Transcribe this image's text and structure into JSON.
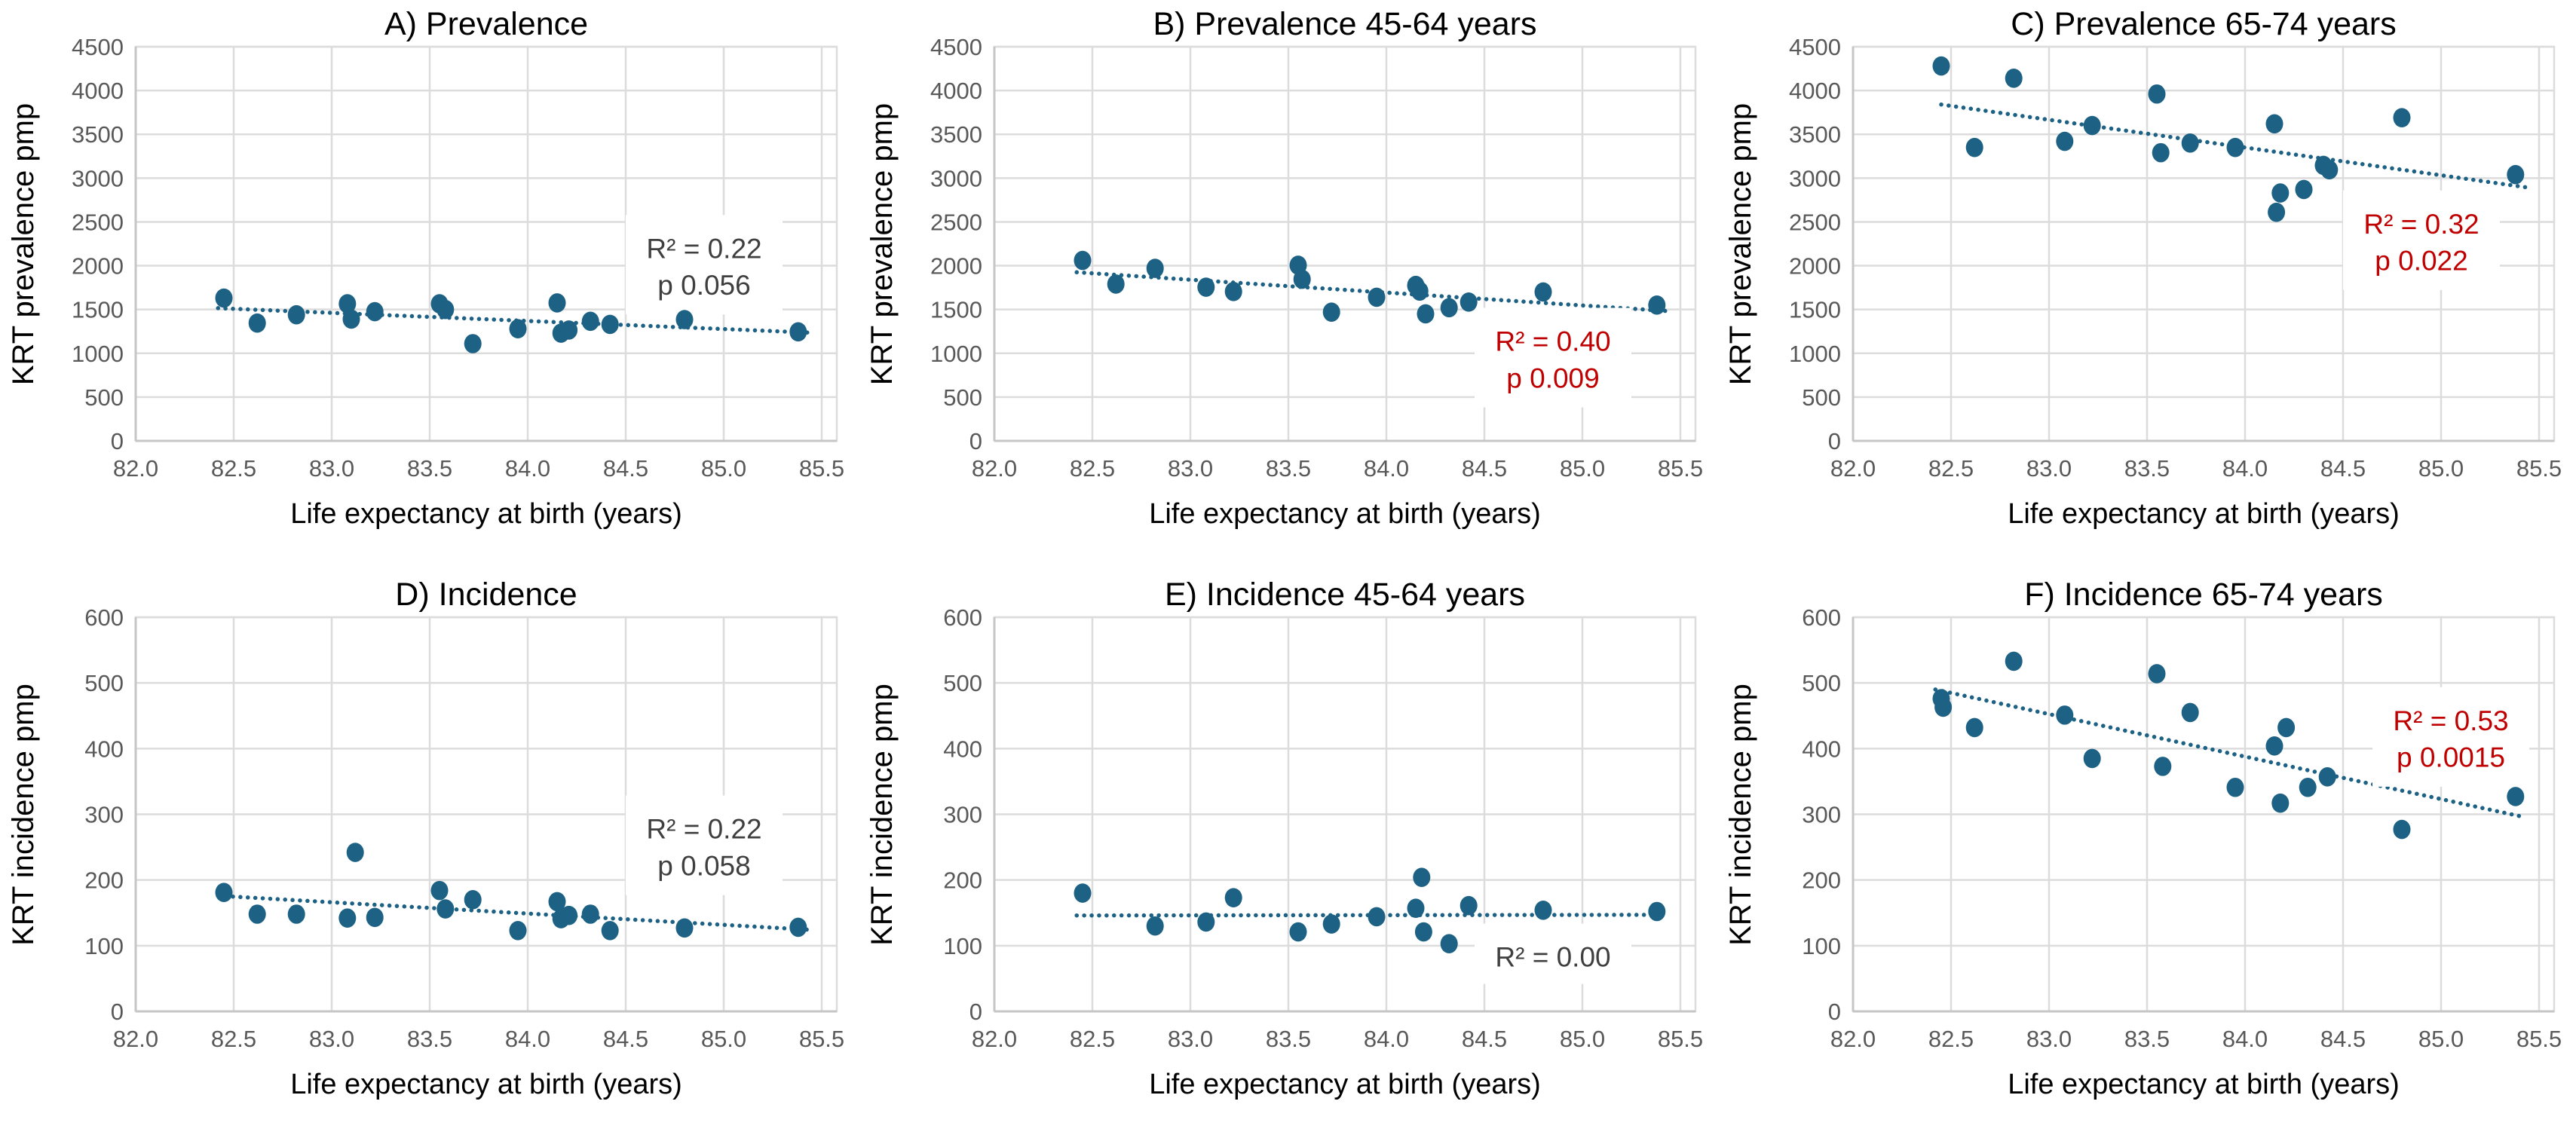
{
  "figure": {
    "background": "#ffffff",
    "description_labels": {
      "x_axis_shared": "Life expectancy at birth (years)",
      "y_axis_top_row": "KRT prevalence pmp",
      "y_axis_bottom_row": "KRT incidence pmp"
    }
  },
  "styles": {
    "point_color": "#1d6284",
    "trend_color": "#1d6284",
    "grid_color": "#dcdcdc",
    "axis_color": "#c6c6c6",
    "tick_label_color": "#595959",
    "title_color": "#000000",
    "annotation_dark": "#3f3f3f",
    "annotation_red": "#c00000"
  },
  "chart_data": [
    {
      "id": "A",
      "type": "scatter",
      "title": "A) Prevalence",
      "xlabel": "Life expectancy at birth (years)",
      "ylabel": "KRT prevalence pmp",
      "xlim": [
        82.0,
        85.5
      ],
      "xtick_step": 0.5,
      "ylim": [
        0,
        4500
      ],
      "ytick_step": 500,
      "grid": true,
      "points": [
        [
          82.45,
          1630
        ],
        [
          82.62,
          1345
        ],
        [
          82.82,
          1440
        ],
        [
          83.08,
          1565
        ],
        [
          83.1,
          1390
        ],
        [
          83.22,
          1475
        ],
        [
          83.55,
          1565
        ],
        [
          83.58,
          1500
        ],
        [
          83.72,
          1110
        ],
        [
          83.95,
          1280
        ],
        [
          84.15,
          1575
        ],
        [
          84.17,
          1230
        ],
        [
          84.21,
          1265
        ],
        [
          84.32,
          1365
        ],
        [
          84.42,
          1330
        ],
        [
          84.8,
          1385
        ],
        [
          85.38,
          1245
        ]
      ],
      "trendline": {
        "style": "dotted",
        "x1": 82.42,
        "y1": 1515,
        "x2": 85.45,
        "y2": 1235
      },
      "annotation": {
        "lines": [
          "R² = 0.22",
          "p 0.056"
        ],
        "color": "dark",
        "x": 84.9,
        "y_lines": [
          2200,
          1780
        ]
      }
    },
    {
      "id": "B",
      "type": "scatter",
      "title": "B) Prevalence 45-64 years",
      "xlabel": "Life expectancy at birth (years)",
      "ylabel": "KRT prevalence pmp",
      "xlim": [
        82.0,
        85.5
      ],
      "xtick_step": 0.5,
      "ylim": [
        0,
        4500
      ],
      "ytick_step": 500,
      "grid": true,
      "points": [
        [
          82.45,
          2060
        ],
        [
          82.62,
          1790
        ],
        [
          82.82,
          1970
        ],
        [
          83.08,
          1755
        ],
        [
          83.22,
          1705
        ],
        [
          83.55,
          2005
        ],
        [
          83.57,
          1845
        ],
        [
          83.72,
          1470
        ],
        [
          83.95,
          1640
        ],
        [
          84.15,
          1775
        ],
        [
          84.17,
          1710
        ],
        [
          84.2,
          1450
        ],
        [
          84.32,
          1520
        ],
        [
          84.42,
          1585
        ],
        [
          84.8,
          1700
        ],
        [
          85.38,
          1550
        ]
      ],
      "trendline": {
        "style": "dotted",
        "x1": 82.42,
        "y1": 1925,
        "x2": 85.45,
        "y2": 1480
      },
      "annotation": {
        "lines": [
          "R² = 0.40",
          "p 0.009"
        ],
        "color": "red",
        "x": 84.85,
        "y_lines": [
          1140,
          720
        ]
      }
    },
    {
      "id": "C",
      "type": "scatter",
      "title": "C) Prevalence 65-74 years",
      "xlabel": "Life expectancy at birth (years)",
      "ylabel": "KRT prevalence pmp",
      "xlim": [
        82.0,
        85.5
      ],
      "xtick_step": 0.5,
      "ylim": [
        0,
        4500
      ],
      "ytick_step": 500,
      "grid": true,
      "points": [
        [
          82.45,
          4280
        ],
        [
          82.62,
          3350
        ],
        [
          82.82,
          4140
        ],
        [
          83.08,
          3420
        ],
        [
          83.22,
          3600
        ],
        [
          83.55,
          3960
        ],
        [
          83.57,
          3290
        ],
        [
          83.72,
          3400
        ],
        [
          83.95,
          3350
        ],
        [
          84.15,
          3620
        ],
        [
          84.16,
          2610
        ],
        [
          84.18,
          2830
        ],
        [
          84.3,
          2870
        ],
        [
          84.4,
          3145
        ],
        [
          84.43,
          3095
        ],
        [
          84.8,
          3690
        ],
        [
          85.38,
          3040
        ]
      ],
      "trendline": {
        "style": "dotted",
        "x1": 82.45,
        "y1": 3840,
        "x2": 85.45,
        "y2": 2890
      },
      "annotation": {
        "lines": [
          "R² = 0.32",
          "p 0.022"
        ],
        "color": "red",
        "x": 84.9,
        "y_lines": [
          2480,
          2060
        ]
      }
    },
    {
      "id": "D",
      "type": "scatter",
      "title": "D) Incidence",
      "xlabel": "Life expectancy at birth (years)",
      "ylabel": "KRT incidence pmp",
      "xlim": [
        82.0,
        85.5
      ],
      "xtick_step": 0.5,
      "ylim": [
        0,
        600
      ],
      "ytick_step": 100,
      "grid": true,
      "points": [
        [
          82.45,
          181
        ],
        [
          82.62,
          148
        ],
        [
          82.82,
          148
        ],
        [
          83.08,
          142
        ],
        [
          83.12,
          242
        ],
        [
          83.22,
          143
        ],
        [
          83.55,
          184
        ],
        [
          83.58,
          156
        ],
        [
          83.72,
          170
        ],
        [
          83.95,
          123
        ],
        [
          84.15,
          167
        ],
        [
          84.17,
          141
        ],
        [
          84.21,
          146
        ],
        [
          84.32,
          148
        ],
        [
          84.42,
          123
        ],
        [
          84.8,
          127
        ],
        [
          85.38,
          128
        ]
      ],
      "trendline": {
        "style": "dotted",
        "x1": 82.42,
        "y1": 176,
        "x2": 85.45,
        "y2": 124
      },
      "annotation": {
        "lines": [
          "R² = 0.22",
          "p 0.058"
        ],
        "color": "dark",
        "x": 84.9,
        "y_lines": [
          278,
          222
        ]
      }
    },
    {
      "id": "E",
      "type": "scatter",
      "title": "E) Incidence 45-64 years",
      "xlabel": "Life expectancy at birth (years)",
      "ylabel": "KRT incidence pmp",
      "xlim": [
        82.0,
        85.5
      ],
      "xtick_step": 0.5,
      "ylim": [
        0,
        600
      ],
      "ytick_step": 100,
      "grid": true,
      "points": [
        [
          82.45,
          180
        ],
        [
          82.82,
          130
        ],
        [
          83.08,
          136
        ],
        [
          83.22,
          173
        ],
        [
          83.55,
          121
        ],
        [
          83.72,
          133
        ],
        [
          83.95,
          144
        ],
        [
          84.15,
          157
        ],
        [
          84.18,
          204
        ],
        [
          84.19,
          121
        ],
        [
          84.32,
          103
        ],
        [
          84.42,
          161
        ],
        [
          84.8,
          154
        ],
        [
          85.38,
          152
        ]
      ],
      "trendline": {
        "style": "dotted",
        "x1": 82.42,
        "y1": 146,
        "x2": 85.4,
        "y2": 147
      },
      "annotation": {
        "lines": [
          "R² = 0.00"
        ],
        "color": "dark",
        "x": 84.85,
        "y_lines": [
          83
        ]
      }
    },
    {
      "id": "F",
      "type": "scatter",
      "title": "F) Incidence 65-74 years",
      "xlabel": "Life expectancy at birth (years)",
      "ylabel": "KRT incidence pmp",
      "xlim": [
        82.0,
        85.5
      ],
      "xtick_step": 0.5,
      "ylim": [
        0,
        600
      ],
      "ytick_step": 100,
      "grid": true,
      "points": [
        [
          82.45,
          476
        ],
        [
          82.46,
          463
        ],
        [
          82.62,
          432
        ],
        [
          82.82,
          533
        ],
        [
          83.08,
          451
        ],
        [
          83.22,
          385
        ],
        [
          83.55,
          514
        ],
        [
          83.58,
          373
        ],
        [
          83.72,
          455
        ],
        [
          83.95,
          341
        ],
        [
          84.15,
          404
        ],
        [
          84.18,
          317
        ],
        [
          84.21,
          432
        ],
        [
          84.32,
          341
        ],
        [
          84.42,
          357
        ],
        [
          84.8,
          277
        ],
        [
          85.38,
          327
        ]
      ],
      "trendline": {
        "style": "dotted",
        "x1": 82.42,
        "y1": 490,
        "x2": 85.42,
        "y2": 296
      },
      "annotation": {
        "lines": [
          "R² = 0.53",
          "p 0.0015"
        ],
        "color": "red",
        "x": 85.05,
        "y_lines": [
          443,
          387
        ]
      }
    }
  ]
}
